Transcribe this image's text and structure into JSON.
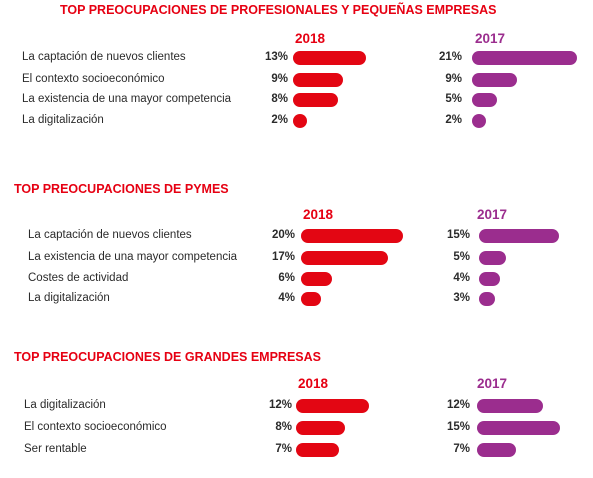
{
  "colors": {
    "title": "#e60012",
    "y2018": "#e30613",
    "y2017": "#9b2d8e",
    "label": "#2b2b2b"
  },
  "chart_data": [
    {
      "type": "bar",
      "title": "TOP PREOCUPACIONES DE PROFESIONALES Y PEQUEÑAS EMPRESAS",
      "categories": [
        "La captación de nuevos clientes",
        "El contexto socioeconómico",
        "La existencia de una mayor competencia",
        "La digitalización"
      ],
      "series": [
        {
          "name": "2018",
          "values": [
            13,
            9,
            8,
            2
          ],
          "labels": [
            "13%",
            "9%",
            "8%",
            "2%"
          ]
        },
        {
          "name": "2017",
          "values": [
            21,
            9,
            5,
            2
          ],
          "labels": [
            "21%",
            "9%",
            "5%",
            "2%"
          ]
        }
      ]
    },
    {
      "type": "bar",
      "title": "TOP PREOCUPACIONES DE PYMES",
      "categories": [
        "La captación de nuevos clientes",
        "La existencia de una mayor competencia",
        "Costes de actividad",
        "La digitalización"
      ],
      "series": [
        {
          "name": "2018",
          "values": [
            20,
            17,
            6,
            4
          ],
          "labels": [
            "20%",
            "17%",
            "6%",
            "4%"
          ]
        },
        {
          "name": "2017",
          "values": [
            15,
            5,
            4,
            3
          ],
          "labels": [
            "15%",
            "5%",
            "4%",
            "3%"
          ]
        }
      ]
    },
    {
      "type": "bar",
      "title": "TOP PREOCUPACIONES DE GRANDES EMPRESAS",
      "categories": [
        "La digitalización",
        "El contexto socioeconómico",
        "Ser rentable"
      ],
      "series": [
        {
          "name": "2018",
          "values": [
            12,
            8,
            7
          ],
          "labels": [
            "12%",
            "8%",
            "7%"
          ]
        },
        {
          "name": "2017",
          "values": [
            12,
            15,
            7
          ],
          "labels": [
            "12%",
            "15%",
            "7%"
          ]
        }
      ]
    }
  ]
}
